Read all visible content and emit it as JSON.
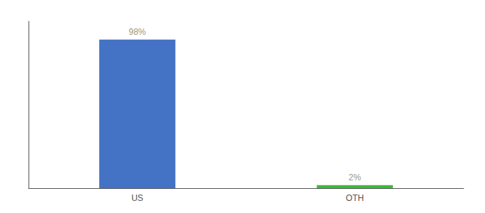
{
  "chart_data": {
    "type": "bar",
    "categories": [
      "US",
      "OTH"
    ],
    "values": [
      98,
      2
    ],
    "colors": [
      "#4472c4",
      "#3dbb35"
    ],
    "data_labels": true,
    "value_labels": [
      "98%",
      "2%"
    ],
    "ylim": [
      0,
      110
    ],
    "yticks": [],
    "grid": false,
    "tick_labels": "x"
  }
}
